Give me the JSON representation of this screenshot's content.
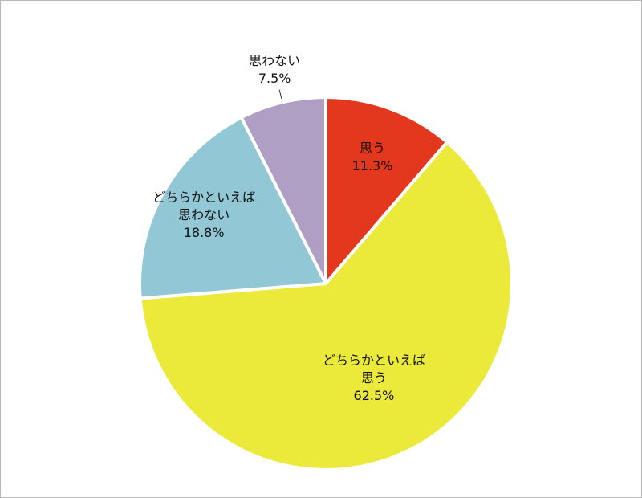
{
  "chart_data": {
    "type": "pie",
    "categories": [
      "思う",
      "どちらかといえば思う",
      "どちらかといえば思わない",
      "思わない"
    ],
    "values": [
      11.3,
      62.5,
      18.8,
      7.5
    ],
    "value_labels": [
      "11.3%",
      "62.5%",
      "18.8%",
      "7.5%"
    ],
    "colors": [
      "#e3371e",
      "#ebe93a",
      "#92c7d6",
      "#b09fc4"
    ]
  }
}
